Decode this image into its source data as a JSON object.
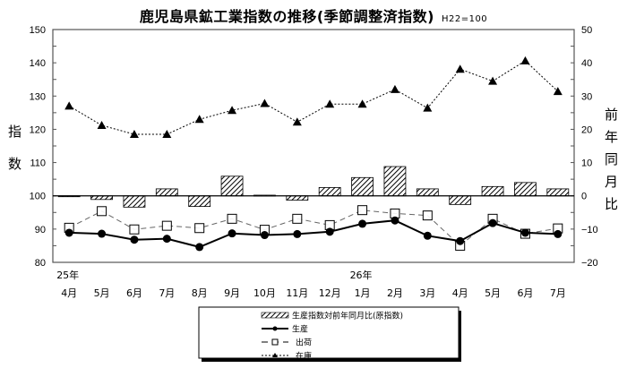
{
  "title": "鹿児島県鉱工業指数の推移(季節調整済指数)",
  "subtitle": "H22=100",
  "chart_data": {
    "type": "line",
    "title": "鹿児島県鉱工業指数の推移(季節調整済指数)",
    "subtitle": "H22=100",
    "ylabel": "指数",
    "y2label": "前年同月比",
    "ylim": [
      80,
      150
    ],
    "y2lim": [
      -20,
      50
    ],
    "yticks": [
      80,
      90,
      100,
      110,
      120,
      130,
      140,
      150
    ],
    "y2ticks": [
      -20,
      -10,
      0,
      10,
      20,
      30,
      40,
      50
    ],
    "year_labels": [
      {
        "index": 0,
        "label": "25年"
      },
      {
        "index": 9,
        "label": "26年"
      }
    ],
    "categories": [
      "4月",
      "5月",
      "6月",
      "7月",
      "8月",
      "9月",
      "10月",
      "11月",
      "12月",
      "1月",
      "2月",
      "3月",
      "4月",
      "5月",
      "6月",
      "7月"
    ],
    "series": [
      {
        "name": "生産指数対前年同月比(原指数)",
        "type": "bar",
        "axis": "right",
        "values": [
          -0.2,
          -1.1,
          -3.4,
          2.1,
          -3.2,
          5.9,
          0.2,
          -1.3,
          2.5,
          5.5,
          8.8,
          2.1,
          -2.6,
          2.8,
          4.0,
          2.1
        ]
      },
      {
        "name": "生産",
        "type": "line",
        "axis": "left",
        "marker": "circle",
        "style": "solid",
        "values": [
          88.9,
          88.6,
          86.8,
          87.1,
          84.6,
          88.7,
          88.2,
          88.5,
          89.2,
          91.6,
          92.6,
          88.0,
          86.4,
          91.8,
          88.9,
          88.5
        ]
      },
      {
        "name": "出荷",
        "type": "line",
        "axis": "left",
        "marker": "square",
        "style": "dashed",
        "values": [
          90.4,
          95.4,
          89.9,
          91.0,
          90.3,
          93.1,
          89.8,
          93.1,
          91.2,
          95.7,
          94.7,
          94.1,
          85.0,
          93.1,
          88.6,
          90.2
        ]
      },
      {
        "name": "在庫",
        "type": "line",
        "axis": "left",
        "marker": "triangle",
        "style": "dotted",
        "values": [
          127.0,
          121.2,
          118.5,
          118.5,
          123.0,
          125.7,
          127.8,
          122.2,
          127.6,
          127.6,
          132.0,
          126.4,
          138.1,
          134.5,
          140.6,
          131.4
        ]
      }
    ],
    "legend_position": "bottom-center",
    "grid": false
  },
  "axes": {
    "left_title": [
      "指",
      "数"
    ],
    "right_title": [
      "前",
      "年",
      "同",
      "月",
      "比"
    ]
  },
  "legend": {
    "items": [
      {
        "label": "生産指数対前年同月比(原指数)",
        "icon": "hatched-bar-icon"
      },
      {
        "label": "生産",
        "icon": "solid-line-circle-icon"
      },
      {
        "label": "出荷",
        "icon": "dashed-line-square-icon"
      },
      {
        "label": "在庫",
        "icon": "dotted-line-triangle-icon"
      }
    ]
  },
  "colors": {
    "ink": "#000000",
    "axis": "#555555",
    "background": "#ffffff"
  }
}
